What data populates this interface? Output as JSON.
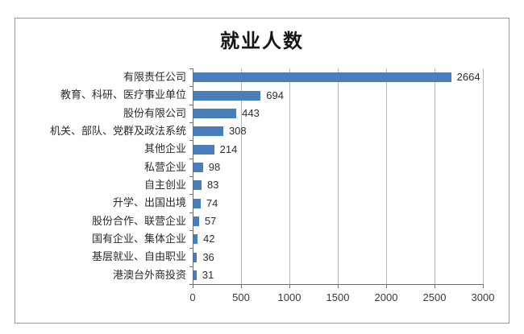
{
  "chart_data": {
    "type": "bar",
    "orientation": "horizontal",
    "title": "就业人数",
    "categories": [
      "有限责任公司",
      "教育、科研、医疗事业单位",
      "股份有限公司",
      "机关、部队、党群及政法系统",
      "其他企业",
      "私营企业",
      "自主创业",
      "升学、出国出境",
      "股份合作、联营企业",
      "国有企业、集体企业",
      "基层就业、自由职业",
      "港澳台外商投资"
    ],
    "values": [
      2664,
      694,
      443,
      308,
      214,
      98,
      83,
      74,
      57,
      42,
      36,
      31
    ],
    "xlabel": "",
    "ylabel": "",
    "xlim": [
      0,
      3000
    ],
    "xticks": [
      0,
      500,
      1000,
      1500,
      2000,
      2500,
      3000
    ],
    "grid": true,
    "value_labels_shown": true,
    "legend_position": "none",
    "bar_color": "#4a7ebb",
    "gridline_color": "#b9b9b9",
    "axis_color": "#707070",
    "title_color": "#151515",
    "label_color": "#2a2a2a"
  }
}
